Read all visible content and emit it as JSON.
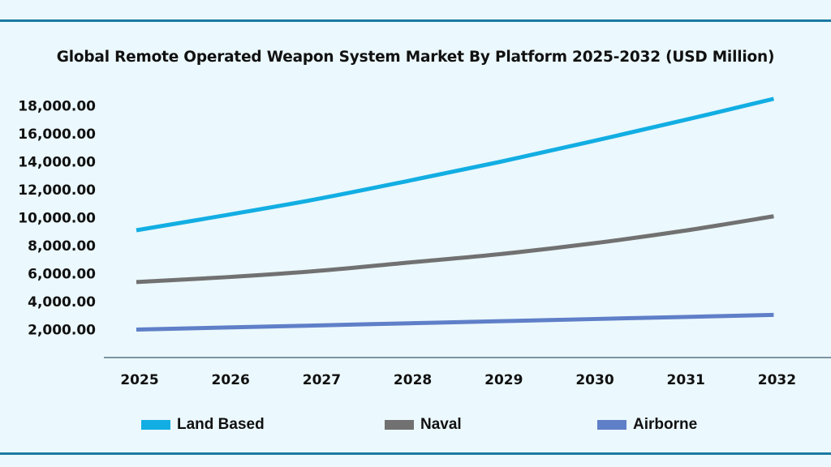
{
  "chart_data": {
    "type": "line",
    "title": "Global Remote Operated Weapon System Market By Platform 2025-2032 (USD Million)",
    "xlabel": "",
    "ylabel": "",
    "categories": [
      "2025",
      "2026",
      "2027",
      "2028",
      "2029",
      "2030",
      "2031",
      "2032"
    ],
    "y_ticks": [
      "2,000.00",
      "4,000.00",
      "6,000.00",
      "8,000.00",
      "10,000.00",
      "12,000.00",
      "14,000.00",
      "16,000.00",
      "18,000.00"
    ],
    "y_tick_values": [
      2000,
      4000,
      6000,
      8000,
      10000,
      12000,
      14000,
      16000,
      18000
    ],
    "ylim": [
      0,
      19500
    ],
    "grid": false,
    "legend_position": "bottom",
    "series": [
      {
        "name": "Land Based",
        "color": "#12aee3",
        "values": [
          9100,
          10200,
          11350,
          12650,
          14000,
          15450,
          16950,
          18500
        ]
      },
      {
        "name": "Naval",
        "color": "#717171",
        "values": [
          5400,
          5750,
          6200,
          6800,
          7400,
          8150,
          9050,
          10100
        ]
      },
      {
        "name": "Airborne",
        "color": "#5f7fc8",
        "values": [
          2000,
          2150,
          2300,
          2450,
          2600,
          2750,
          2900,
          3050
        ]
      }
    ]
  }
}
